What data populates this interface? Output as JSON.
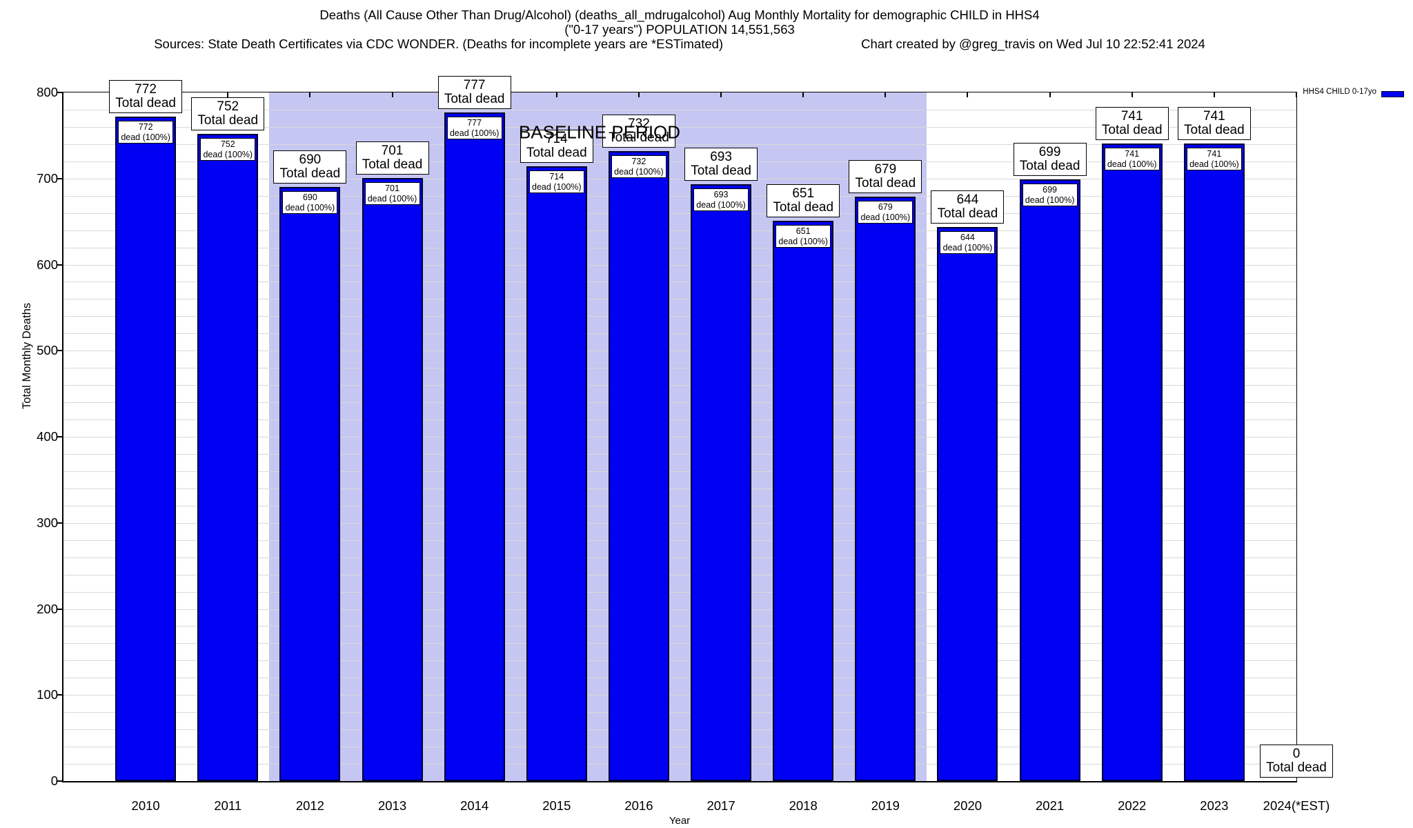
{
  "title": {
    "line1": "Deaths (All Cause Other Than Drug/Alcohol) (deaths_all_mdrugalcohol) Aug Monthly Mortality for demographic CHILD in HHS4",
    "line2": "(\"0-17 years\") POPULATION 14,551,563",
    "sources": "Sources: State Death Certificates via CDC WONDER. (Deaths for incomplete years are *ESTimated)",
    "credit": "Chart created by @greg_travis on Wed Jul 10 22:52:41 2024"
  },
  "legend": {
    "label": "HHS4 CHILD 0-17yo"
  },
  "baseline_label": "BASELINE PERIOD",
  "axes": {
    "y_label": "Total Monthly Deaths",
    "x_label": "Year",
    "y_ticks": [
      0,
      100,
      200,
      300,
      400,
      500,
      600,
      700,
      800
    ]
  },
  "colors": {
    "bar_fill": "#0000f2",
    "bar_border": "#000030",
    "baseline_band": "#c6c6f2",
    "gridline": "#d9d9d9"
  },
  "chart_data": {
    "type": "bar",
    "title": "Deaths (All Cause Other Than Drug/Alcohol) (deaths_all_mdrugalcohol) Aug Monthly Mortality for demographic CHILD in HHS4",
    "subtitle": "(\"0-17 years\") POPULATION 14,551,563",
    "series_name": "HHS4 CHILD 0-17yo",
    "categories": [
      "2010",
      "2011",
      "2012",
      "2013",
      "2014",
      "2015",
      "2016",
      "2017",
      "2018",
      "2019",
      "2020",
      "2021",
      "2022",
      "2023",
      "2024(*EST)"
    ],
    "values": [
      772,
      752,
      690,
      701,
      777,
      714,
      732,
      693,
      651,
      679,
      644,
      699,
      741,
      741,
      0
    ],
    "xlabel": "Year",
    "ylabel": "Total Monthly Deaths",
    "ylim": [
      0,
      800
    ],
    "ytick_step": 100,
    "minor_grid_step": 20,
    "grid": true,
    "legend_position": "top-right",
    "bar_top_label_line2": "Total dead",
    "bar_inner_label_line2": "dead (100%)",
    "baseline_band": {
      "label": "BASELINE PERIOD",
      "from_category": "2012",
      "to_category": "2019"
    }
  }
}
